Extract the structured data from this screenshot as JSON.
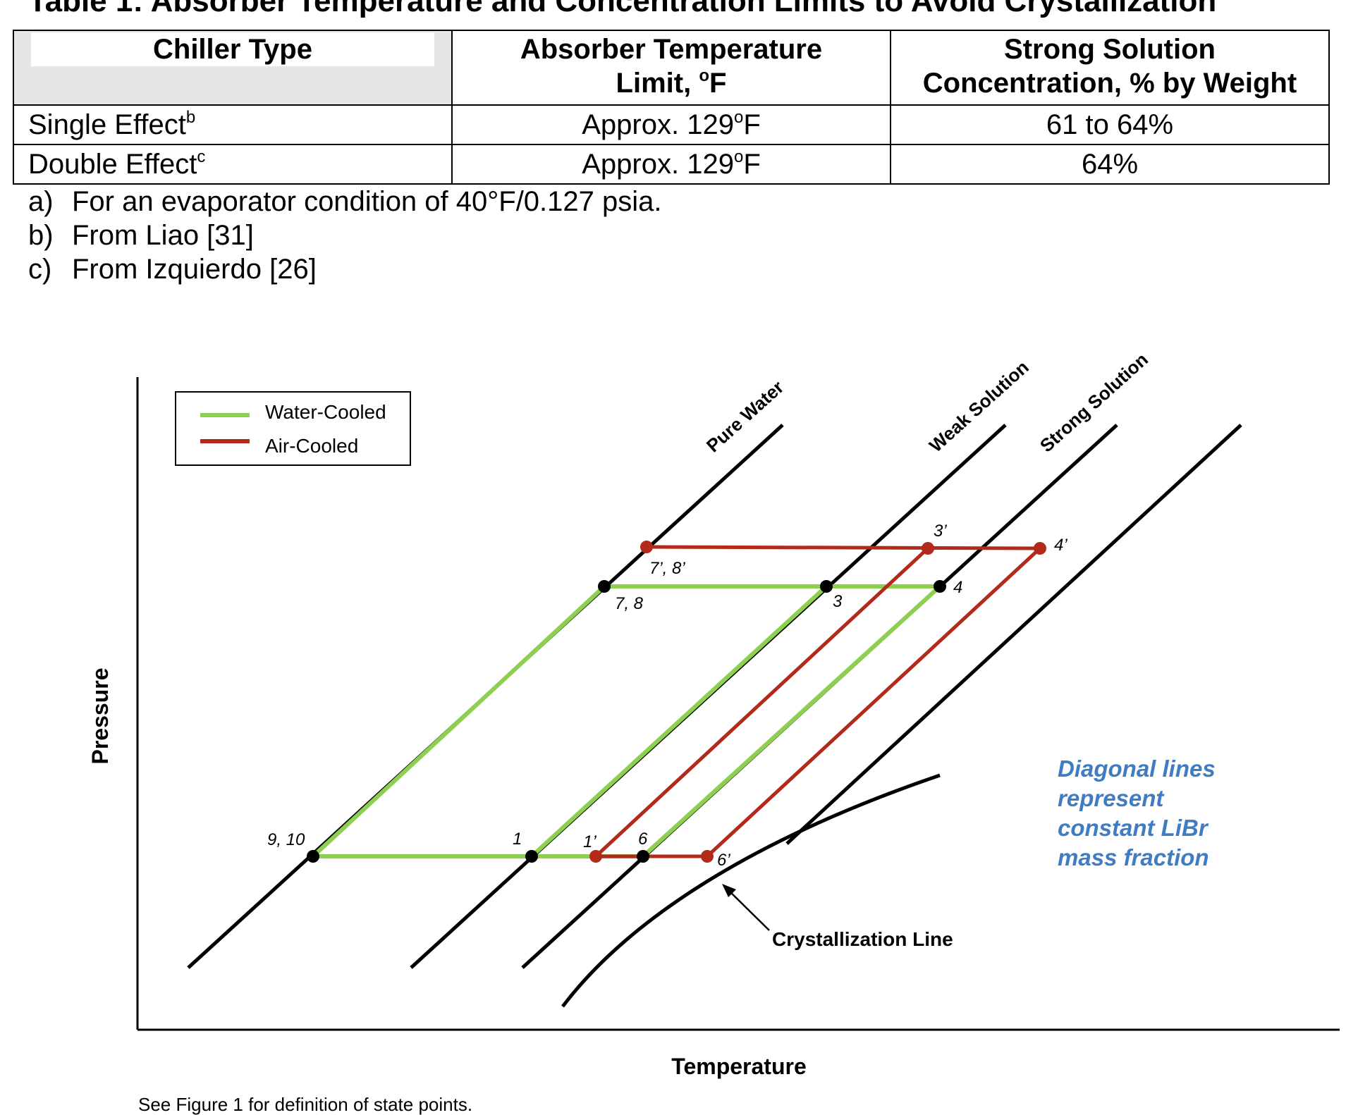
{
  "caption": "Table 1: Absorber Temperature and Concentration Limits to Avoid Crystallization",
  "table": {
    "headers": {
      "chiller_type": "Chiller Type",
      "temp_limit_line1": "Absorber Temperature",
      "temp_limit_line2_pre": "Limit, ",
      "temp_limit_deg": "o",
      "temp_limit_line2_post": "F",
      "concentration_line1": "Strong Solution",
      "concentration_line2": "Concentration, % by Weight"
    },
    "rows": [
      {
        "type": "Single Effect",
        "note": "b",
        "temp_pre": "Approx. 129",
        "temp_deg": "o",
        "temp_post": "F",
        "concentration": "61 to 64%"
      },
      {
        "type": "Double Effect",
        "note": "c",
        "temp_pre": "Approx. 129",
        "temp_deg": "o",
        "temp_post": "F",
        "concentration": "64%"
      }
    ]
  },
  "notes": [
    {
      "marker": "a)",
      "text": "For an evaporator condition of 40°F/0.127 psia."
    },
    {
      "marker": "b)",
      "text": "From Liao [31]"
    },
    {
      "marker": "c)",
      "text": "From Izquierdo [26]"
    }
  ],
  "diagram": {
    "axis_x_label": "Temperature",
    "axis_y_label": "Pressure",
    "legend": {
      "water_cooled": "Water-Cooled",
      "air_cooled": "Air-Cooled"
    },
    "line_labels": {
      "pure_water": "Pure Water",
      "weak_solution": "Weak Solution",
      "strong_solution": "Strong Solution"
    },
    "crystallization_label": "Crystallization Line",
    "annotation": [
      "Diagonal lines",
      "represent",
      "constant LiBr",
      "mass fraction"
    ],
    "state_points": {
      "p910": "9, 10",
      "p1": "1",
      "p1p": "1’",
      "p6": "6",
      "p6p": "6’",
      "p78": "7, 8",
      "p78p": "7’, 8’",
      "p3": "3",
      "p3p": "3’",
      "p4": "4",
      "p4p": "4’"
    },
    "colors": {
      "water_cooled": "#8dcf4f",
      "air_cooled": "#b22a1a",
      "annotation": "#3f7cc3"
    }
  },
  "footer": "See Figure 1 for definition of state points."
}
